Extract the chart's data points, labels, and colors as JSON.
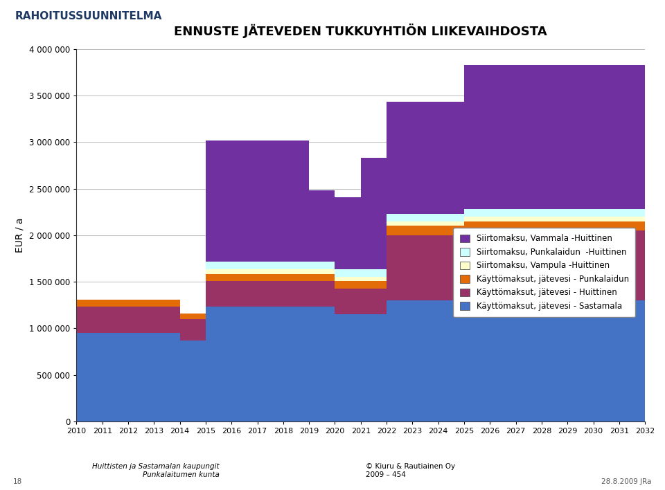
{
  "title": "ENNUSTE JÄTEVEDEN TUKKUYHTIÖN LIIKEVAIHDOSTA",
  "header": "RAHOITUSSUUNNITELMA",
  "ylabel": "EUR / a",
  "years": [
    2010,
    2011,
    2012,
    2013,
    2014,
    2015,
    2016,
    2017,
    2018,
    2019,
    2020,
    2021,
    2022,
    2023,
    2024,
    2025,
    2026,
    2027,
    2028,
    2029,
    2030,
    2031,
    2032
  ],
  "series": {
    "Käyttömaksut, jätevesi - Sastamala": {
      "color": "#4472C4",
      "values": [
        950000,
        950000,
        950000,
        950000,
        870000,
        1230000,
        1230000,
        1230000,
        1230000,
        1230000,
        1150000,
        1150000,
        1300000,
        1300000,
        1300000,
        1300000,
        1300000,
        1300000,
        1300000,
        1300000,
        1300000,
        1300000,
        1300000
      ]
    },
    "Käyttömaksut, jätevesi - Huittinen": {
      "color": "#993366",
      "values": [
        280000,
        280000,
        280000,
        280000,
        230000,
        280000,
        280000,
        280000,
        280000,
        280000,
        280000,
        280000,
        700000,
        700000,
        700000,
        750000,
        750000,
        750000,
        750000,
        750000,
        750000,
        750000,
        750000
      ]
    },
    "Käyttömaksut, jätevesi - Punkalaidun": {
      "color": "#E36C09",
      "values": [
        75000,
        75000,
        75000,
        75000,
        60000,
        75000,
        75000,
        75000,
        75000,
        75000,
        75000,
        75000,
        100000,
        100000,
        100000,
        100000,
        100000,
        100000,
        100000,
        100000,
        100000,
        100000,
        100000
      ]
    },
    "Siirtomaksu, Vampula -Huittinen": {
      "color": "#FFFFCC",
      "values": [
        0,
        0,
        0,
        0,
        0,
        50000,
        50000,
        50000,
        50000,
        50000,
        50000,
        50000,
        50000,
        50000,
        50000,
        50000,
        50000,
        50000,
        50000,
        50000,
        50000,
        50000,
        50000
      ]
    },
    "Siirtomaksu, Punkalaidun  -Huittinen": {
      "color": "#CCFFFF",
      "values": [
        0,
        0,
        0,
        0,
        0,
        80000,
        80000,
        80000,
        80000,
        80000,
        80000,
        80000,
        80000,
        80000,
        80000,
        80000,
        80000,
        80000,
        80000,
        80000,
        80000,
        80000,
        80000
      ]
    },
    "Siirtomaksu, Vammala -Huittinen": {
      "color": "#7030A0",
      "values": [
        0,
        0,
        0,
        0,
        0,
        1300000,
        1300000,
        1300000,
        1300000,
        770000,
        770000,
        1200000,
        1200000,
        1200000,
        1200000,
        1550000,
        1550000,
        1550000,
        1550000,
        1550000,
        1550000,
        1550000,
        1550000
      ]
    }
  },
  "ylim": [
    0,
    4000000
  ],
  "yticks": [
    0,
    500000,
    1000000,
    1500000,
    2000000,
    2500000,
    3000000,
    3500000,
    4000000
  ],
  "ytick_labels": [
    "0",
    "500 000",
    "1 000 000",
    "1 500 000",
    "2 000 000",
    "2 500 000",
    "3 000 000",
    "3 500 000",
    "4 000 000"
  ],
  "footer_left": "Huittisten ja Sastamalan kaupungit\nPunkalaitumen kunta",
  "footer_right": "© Kiuru & Rautiainen Oy\n2009 – 454",
  "page_num": "18",
  "date": "28.8.2009 JRa",
  "bg_color": "#FFFFFF",
  "header_bar_color": "#4F81BD",
  "header_text_color": "#1F3864"
}
